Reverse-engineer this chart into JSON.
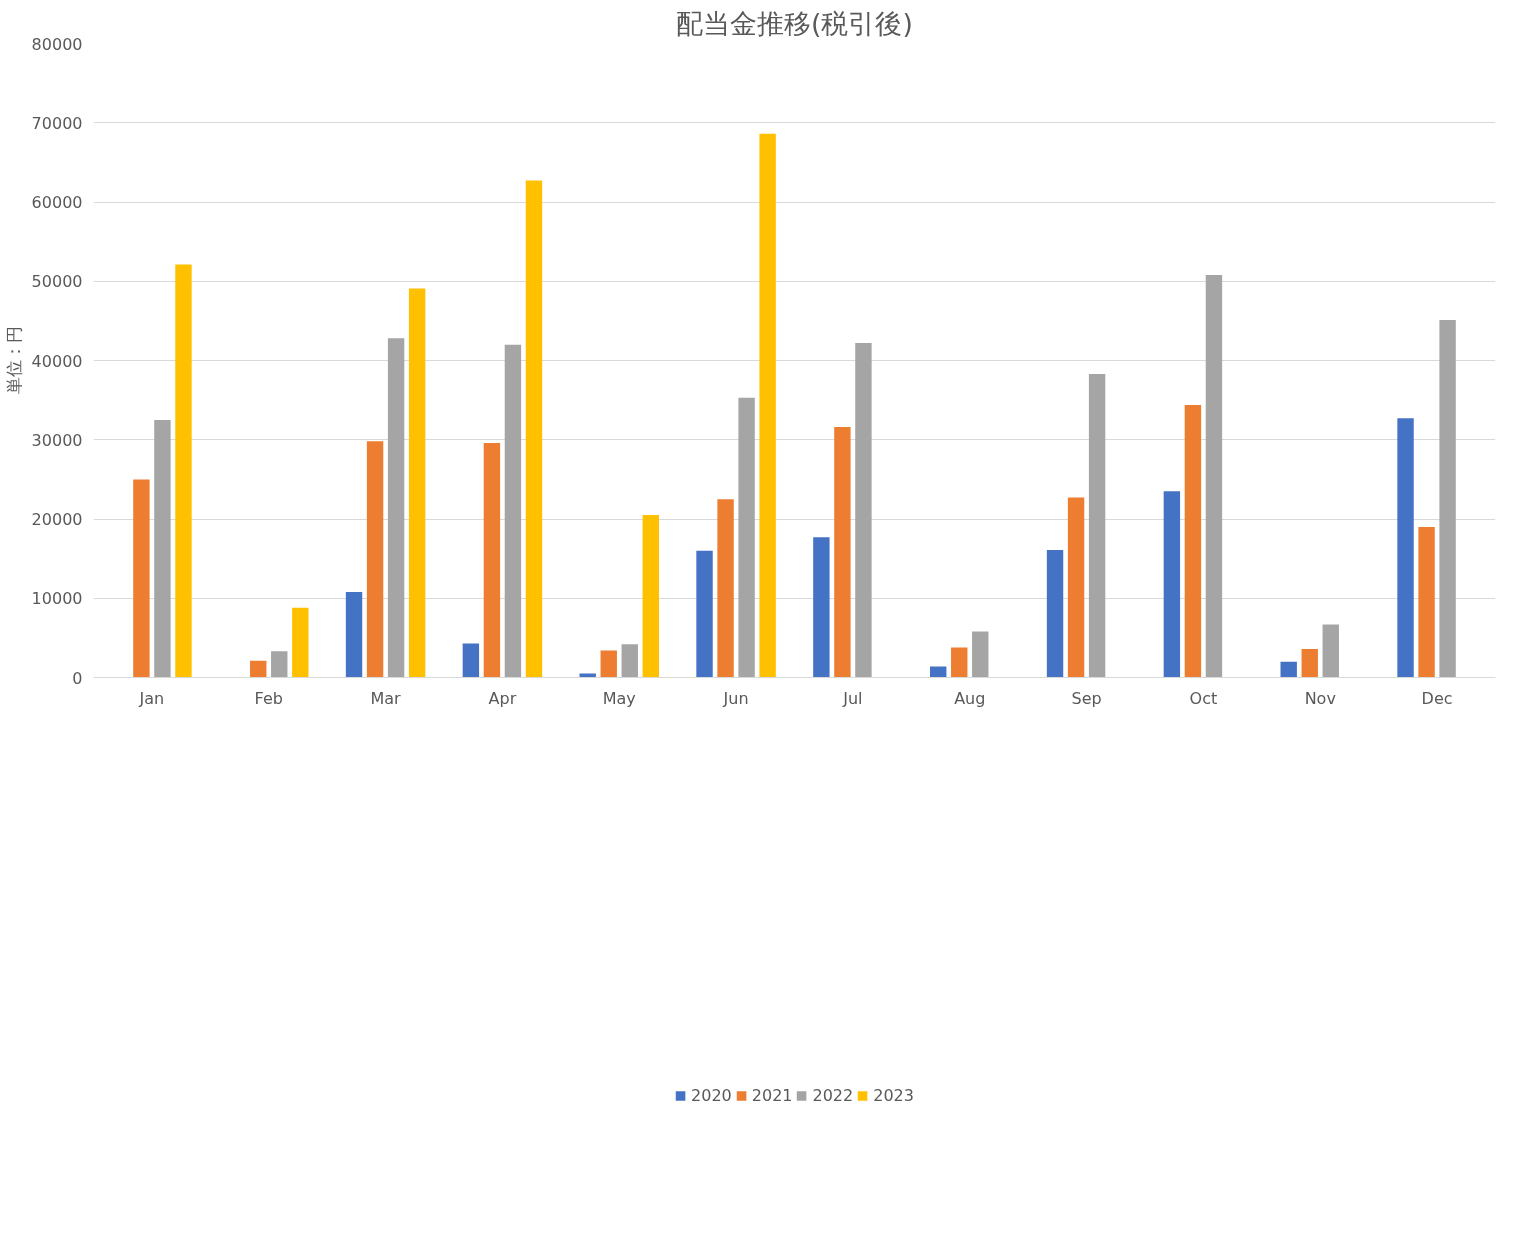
{
  "chart_data": {
    "type": "bar",
    "title": "配当金推移(税引後)",
    "ylabel": "単位：円",
    "categories": [
      "Jan",
      "Feb",
      "Mar",
      "Apr",
      "May",
      "Jun",
      "Jul",
      "Aug",
      "Sep",
      "Oct",
      "Nov",
      "Dec"
    ],
    "series": [
      {
        "name": "2020",
        "color": "#4472c4",
        "values": [
          null,
          null,
          10800,
          4300,
          500,
          16000,
          17700,
          1400,
          16100,
          23500,
          2000,
          32700
        ]
      },
      {
        "name": "2021",
        "color": "#ed7d31",
        "values": [
          25000,
          2100,
          29800,
          29600,
          3400,
          22500,
          31600,
          3800,
          22700,
          34400,
          3600,
          19000
        ]
      },
      {
        "name": "2022",
        "color": "#a5a5a5",
        "values": [
          32500,
          3300,
          42800,
          42000,
          4200,
          35300,
          42200,
          5800,
          38300,
          50800,
          6700,
          45100
        ]
      },
      {
        "name": "2023",
        "color": "#ffc000",
        "values": [
          52100,
          8800,
          49100,
          62700,
          20500,
          68600,
          null,
          null,
          null,
          null,
          null,
          null
        ]
      }
    ],
    "ylim": [
      0,
      80000
    ],
    "yticks": [
      0,
      10000,
      20000,
      30000,
      40000,
      50000,
      60000,
      70000,
      80000
    ],
    "grid": "y",
    "legend": "bottom"
  }
}
